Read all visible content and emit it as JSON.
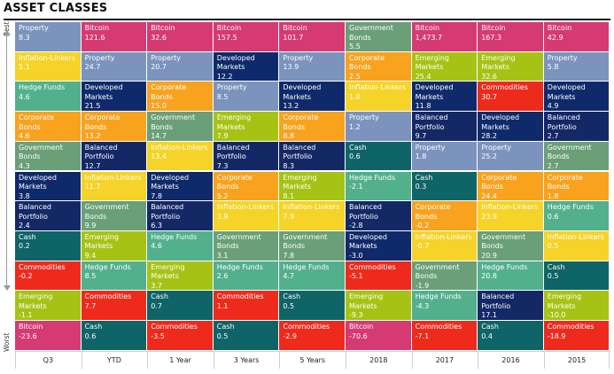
{
  "title": "ASSET CLASSES",
  "axis": {
    "top": "Best",
    "bottom": "Worst"
  },
  "colors": {
    "Property": "#7b93bd",
    "Bitcoin": "#d63a73",
    "Government Bonds": "#6a9f78",
    "Inflation-Linkers": "#f5d328",
    "Corporate Bonds": "#f8a21e",
    "Emerging Markets": "#a6c315",
    "Developed Markets": "#0f2a6a",
    "Hedge Funds": "#52b08d",
    "Commodities": "#ee2a1c",
    "Balanced Portfolio": "#142866",
    "Cash": "#0e6466"
  },
  "text_colors": {
    "Property": "#ffffff",
    "Bitcoin": "#ffffff",
    "Government Bonds": "#ffffff",
    "Inflation-Linkers": "#ffffff",
    "Corporate Bonds": "#ffffff",
    "Emerging Markets": "#ffffff",
    "Developed Markets": "#ffffff",
    "Hedge Funds": "#ffffff",
    "Commodities": "#ffffff",
    "Balanced Portfolio": "#ffffff",
    "Cash": "#ffffff"
  },
  "chart_data": {
    "type": "table",
    "title": "ASSET CLASSES",
    "columns": [
      "Q3",
      "YTD",
      "1 Year",
      "3 Years",
      "5 Years",
      "2018",
      "2017",
      "2016",
      "2015"
    ],
    "rows_label_top": "Best",
    "rows_label_bottom": "Worst",
    "cells": [
      [
        {
          "name": "Property",
          "value": "8.3"
        },
        {
          "name": "Inflation-Linkers",
          "value": "5.1"
        },
        {
          "name": "Hedge Funds",
          "value": "4.6"
        },
        {
          "name": "Corporate Bonds",
          "value": "4.6"
        },
        {
          "name": "Government Bonds",
          "value": "4.3"
        },
        {
          "name": "Developed Markets",
          "value": "3.8"
        },
        {
          "name": "Balanced Portfolio",
          "value": "2.4"
        },
        {
          "name": "Cash",
          "value": "0.2"
        },
        {
          "name": "Commodities",
          "value": "-0.2"
        },
        {
          "name": "Emerging Markets",
          "value": "-1.1"
        },
        {
          "name": "Bitcoin",
          "value": "-23.6"
        }
      ],
      [
        {
          "name": "Bitcoin",
          "value": "121.6"
        },
        {
          "name": "Property",
          "value": "24.7"
        },
        {
          "name": "Developed Markets",
          "value": "21.5"
        },
        {
          "name": "Corporate Bonds",
          "value": "13.2"
        },
        {
          "name": "Balanced Portfolio",
          "value": "12.7"
        },
        {
          "name": "Inflation-Linkers",
          "value": "11.7"
        },
        {
          "name": "Government Bonds",
          "value": "9.9"
        },
        {
          "name": "Emerging Markets",
          "value": "9.4"
        },
        {
          "name": "Hedge Funds",
          "value": "8.5"
        },
        {
          "name": "Commodities",
          "value": "7.7"
        },
        {
          "name": "Cash",
          "value": "0.6"
        }
      ],
      [
        {
          "name": "Bitcoin",
          "value": "32.6"
        },
        {
          "name": "Property",
          "value": "20.7"
        },
        {
          "name": "Corporate Bonds",
          "value": "15.0"
        },
        {
          "name": "Government Bonds",
          "value": "14.7"
        },
        {
          "name": "Inflation-Linkers",
          "value": "13.4"
        },
        {
          "name": "Developed Markets",
          "value": "7.8"
        },
        {
          "name": "Balanced Portfolio",
          "value": "6.3"
        },
        {
          "name": "Hedge Funds",
          "value": "4.6"
        },
        {
          "name": "Emerging Markets",
          "value": "3.7"
        },
        {
          "name": "Cash",
          "value": "0.7"
        },
        {
          "name": "Commodities",
          "value": "-3.5"
        }
      ],
      [
        {
          "name": "Bitcoin",
          "value": "157.5"
        },
        {
          "name": "Developed Markets",
          "value": "12.2"
        },
        {
          "name": "Property",
          "value": "8.5"
        },
        {
          "name": "Emerging Markets",
          "value": "7.9"
        },
        {
          "name": "Balanced Portfolio",
          "value": "7.3"
        },
        {
          "name": "Corporate Bonds",
          "value": "5.2"
        },
        {
          "name": "Inflation-Linkers",
          "value": "3.9"
        },
        {
          "name": "Government Bonds",
          "value": "3.1"
        },
        {
          "name": "Hedge Funds",
          "value": "2.6"
        },
        {
          "name": "Commodities",
          "value": "1.1"
        },
        {
          "name": "Cash",
          "value": "0.5"
        }
      ],
      [
        {
          "name": "Bitcoin",
          "value": "101.7"
        },
        {
          "name": "Property",
          "value": "13.9"
        },
        {
          "name": "Developed Markets",
          "value": "13.2"
        },
        {
          "name": "Corporate Bonds",
          "value": "8.8"
        },
        {
          "name": "Balanced Portfolio",
          "value": "8.3"
        },
        {
          "name": "Emerging Markets",
          "value": "8.1"
        },
        {
          "name": "Inflation-Linkers",
          "value": "7.9"
        },
        {
          "name": "Government Bonds",
          "value": "7.8"
        },
        {
          "name": "Hedge Funds",
          "value": "4.7"
        },
        {
          "name": "Cash",
          "value": "0.5"
        },
        {
          "name": "Commodities",
          "value": "-2.9"
        }
      ],
      [
        {
          "name": "Government Bonds",
          "value": "5.5"
        },
        {
          "name": "Corporate Bonds",
          "value": "2.5"
        },
        {
          "name": "Inflation-Linkers",
          "value": "1.8"
        },
        {
          "name": "Property",
          "value": "1.2"
        },
        {
          "name": "Cash",
          "value": "0.6"
        },
        {
          "name": "Hedge Funds",
          "value": "-2.1"
        },
        {
          "name": "Balanced Portfolio",
          "value": "-2.8"
        },
        {
          "name": "Developed Markets",
          "value": "-3.0"
        },
        {
          "name": "Commodities",
          "value": "-5.1"
        },
        {
          "name": "Emerging Markets",
          "value": "-9.3"
        },
        {
          "name": "Bitcoin",
          "value": "-70.6"
        }
      ],
      [
        {
          "name": "Bitcoin",
          "value": "1,473.7"
        },
        {
          "name": "Emerging Markets",
          "value": "25.4"
        },
        {
          "name": "Developed Markets",
          "value": "11.8"
        },
        {
          "name": "Balanced Portfolio",
          "value": "9.7"
        },
        {
          "name": "Property",
          "value": "1.8"
        },
        {
          "name": "Cash",
          "value": "0.3"
        },
        {
          "name": "Corporate Bonds",
          "value": "-0.2"
        },
        {
          "name": "Inflation-Linkers",
          "value": "-0.7"
        },
        {
          "name": "Government Bonds",
          "value": "-1.9"
        },
        {
          "name": "Hedge Funds",
          "value": "-4.3"
        },
        {
          "name": "Commodities",
          "value": "-7.1"
        }
      ],
      [
        {
          "name": "Bitcoin",
          "value": "167.3"
        },
        {
          "name": "Emerging Markets",
          "value": "32.6"
        },
        {
          "name": "Commodities",
          "value": "30.7"
        },
        {
          "name": "Developed Markets",
          "value": "28.2"
        },
        {
          "name": "Property",
          "value": "25.2"
        },
        {
          "name": "Corporate Bonds",
          "value": "24.4"
        },
        {
          "name": "Inflation-Linkers",
          "value": "23.9"
        },
        {
          "name": "Government Bonds",
          "value": "20.9"
        },
        {
          "name": "Hedge Funds",
          "value": "20.8"
        },
        {
          "name": "Balanced Portfolio",
          "value": "17.1"
        },
        {
          "name": "Cash",
          "value": "0.4"
        }
      ],
      [
        {
          "name": "Bitcoin",
          "value": "42.9"
        },
        {
          "name": "Property",
          "value": "5.8"
        },
        {
          "name": "Developed Markets",
          "value": "4.9"
        },
        {
          "name": "Balanced Portfolio",
          "value": "2.7"
        },
        {
          "name": "Government Bonds",
          "value": "2.7"
        },
        {
          "name": "Corporate Bonds",
          "value": "1.8"
        },
        {
          "name": "Hedge Funds",
          "value": "0.6"
        },
        {
          "name": "Inflation-Linkers",
          "value": "0.5"
        },
        {
          "name": "Cash",
          "value": "0.5"
        },
        {
          "name": "Emerging Markets",
          "value": "-10.0"
        },
        {
          "name": "Commodities",
          "value": "-18.9"
        }
      ]
    ]
  }
}
